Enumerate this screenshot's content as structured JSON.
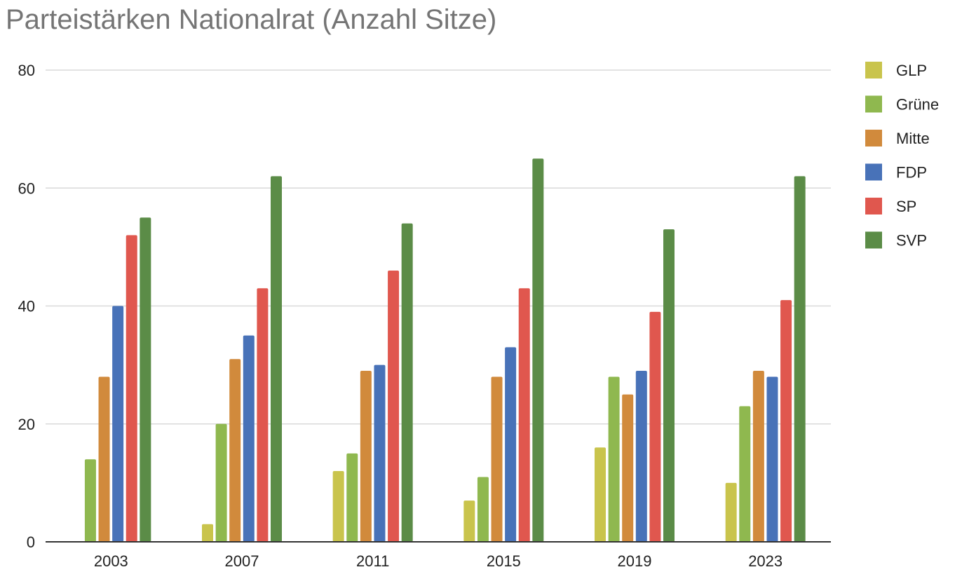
{
  "chart_data": {
    "type": "bar",
    "title": "Parteistärken Nationalrat (Anzahl Sitze)",
    "xlabel": "",
    "ylabel": "",
    "categories": [
      "2003",
      "2007",
      "2011",
      "2015",
      "2019",
      "2023"
    ],
    "ylim": [
      0,
      80
    ],
    "yticks": [
      "0",
      "20",
      "40",
      "60",
      "80"
    ],
    "grid": true,
    "legend_position": "right",
    "series": [
      {
        "name": "GLP",
        "color": "#c9c44c",
        "values": [
          0,
          3,
          12,
          7,
          16,
          10
        ]
      },
      {
        "name": "Grüne",
        "color": "#8fb84f",
        "values": [
          14,
          20,
          15,
          11,
          28,
          23
        ]
      },
      {
        "name": "Mitte",
        "color": "#d18a3c",
        "values": [
          28,
          31,
          29,
          28,
          25,
          29
        ]
      },
      {
        "name": "FDP",
        "color": "#4872b8",
        "values": [
          40,
          35,
          30,
          33,
          29,
          28
        ]
      },
      {
        "name": "SP",
        "color": "#e0574e",
        "values": [
          52,
          43,
          46,
          43,
          39,
          41
        ]
      },
      {
        "name": "SVP",
        "color": "#5b8c47",
        "values": [
          55,
          62,
          54,
          65,
          53,
          62
        ]
      }
    ]
  }
}
